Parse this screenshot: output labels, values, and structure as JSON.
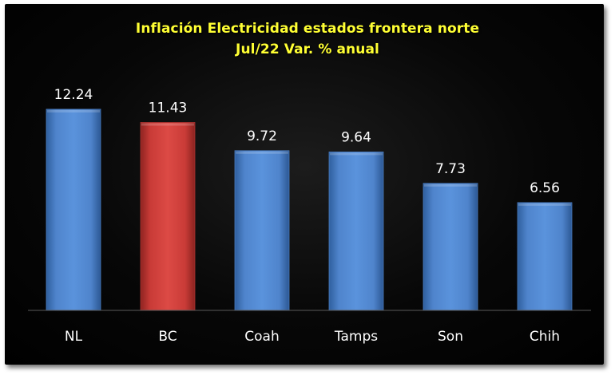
{
  "chart_data": {
    "type": "bar",
    "title": "Inflación Electricidad estados frontera norte",
    "subtitle": "Jul/22 Var. % anual",
    "categories": [
      "NL",
      "BC",
      "Coah",
      "Tamps",
      "Son",
      "Chih"
    ],
    "values": [
      12.24,
      11.43,
      9.72,
      9.64,
      7.73,
      6.56
    ],
    "value_labels": [
      "12.24",
      "11.43",
      "9.72",
      "9.64",
      "7.73",
      "6.56"
    ],
    "xlabel": "",
    "ylabel": "",
    "ylim": [
      0,
      14
    ],
    "grid": false,
    "legend": "none",
    "colors": {
      "default_bar": "#4f81bd",
      "highlight_bar": "#d43f3a",
      "background": "#000000",
      "title": "#ffff33",
      "labels": "#ffffff"
    },
    "highlight_index": 1
  }
}
